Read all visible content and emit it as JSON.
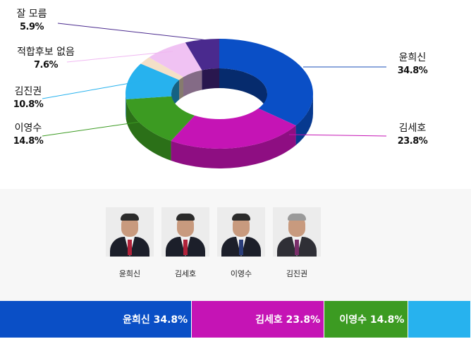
{
  "chart_data": {
    "type": "pie",
    "donut": true,
    "three_d": true,
    "slices": [
      {
        "name": "윤희신",
        "value": 34.8,
        "value_label": "34.8%",
        "color": "#0a4fc6"
      },
      {
        "name": "김세호",
        "value": 23.8,
        "value_label": "23.8%",
        "color": "#c514b5"
      },
      {
        "name": "이영수",
        "value": 14.8,
        "value_label": "14.8%",
        "color": "#3c9b22"
      },
      {
        "name": "김진권",
        "value": 10.8,
        "value_label": "10.8%",
        "color": "#27b2ee"
      },
      {
        "name": "",
        "value": 2.3,
        "value_label": "",
        "color": "#f4e0c8"
      },
      {
        "name": "적합후보 없음",
        "value": 7.6,
        "value_label": "7.6%",
        "color": "#f0c2f3"
      },
      {
        "name": "잘 모름",
        "value": 5.9,
        "value_label": "5.9%",
        "color": "#4a2a8e"
      }
    ]
  },
  "candidates": [
    {
      "name": "윤희신"
    },
    {
      "name": "김세호"
    },
    {
      "name": "이영수"
    },
    {
      "name": "김진권"
    }
  ],
  "bar": [
    {
      "label": "윤희신 34.8%",
      "value": 34.8,
      "color": "#0a4fc6"
    },
    {
      "label": "김세호 23.8%",
      "value": 23.8,
      "color": "#c514b5"
    },
    {
      "label": "이영수 14.8%",
      "value": 14.8,
      "color": "#3c9b22"
    },
    {
      "label": "",
      "value": 10.8,
      "color": "#27b2ee"
    }
  ]
}
